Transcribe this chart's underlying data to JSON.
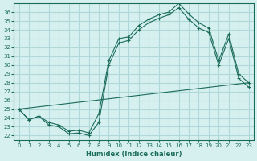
{
  "xlabel": "Humidex (Indice chaleur)",
  "ylabel": "",
  "background_color": "#d6f0f0",
  "grid_color": "#b0d8d8",
  "line_color": "#1a6b5a",
  "xlim": [
    -0.5,
    23.5
  ],
  "ylim": [
    21.5,
    37
  ],
  "x_ticks": [
    0,
    1,
    2,
    3,
    4,
    5,
    6,
    7,
    8,
    9,
    10,
    11,
    12,
    13,
    14,
    15,
    16,
    17,
    18,
    19,
    20,
    21,
    22,
    23
  ],
  "y_ticks": [
    22,
    23,
    24,
    25,
    26,
    27,
    28,
    29,
    30,
    31,
    32,
    33,
    34,
    35,
    36
  ],
  "line1_x": [
    0,
    1,
    2,
    3,
    4,
    5,
    6,
    7,
    8,
    9,
    10,
    11,
    12,
    13,
    14,
    15,
    16,
    17,
    18,
    19,
    20,
    21,
    22,
    23
  ],
  "line1_y": [
    25.0,
    23.8,
    24.2,
    23.2,
    23.0,
    22.2,
    22.3,
    22.0,
    23.5,
    30.0,
    32.5,
    32.8,
    34.0,
    34.8,
    35.3,
    35.7,
    36.5,
    35.2,
    34.2,
    33.7,
    30.0,
    33.0,
    28.5,
    27.5
  ],
  "line2_x": [
    0,
    1,
    2,
    3,
    4,
    5,
    6,
    7,
    8,
    9,
    10,
    11,
    12,
    13,
    14,
    15,
    16,
    17,
    18,
    19,
    20,
    21,
    22,
    23
  ],
  "line2_y": [
    25.0,
    23.8,
    24.2,
    23.5,
    23.2,
    22.5,
    22.6,
    22.3,
    24.5,
    30.5,
    33.0,
    33.2,
    34.5,
    35.2,
    35.7,
    36.0,
    37.0,
    35.8,
    34.8,
    34.2,
    30.5,
    33.5,
    29.0,
    28.0
  ],
  "line3_x": [
    0,
    23
  ],
  "line3_y": [
    25.0,
    28.0
  ]
}
